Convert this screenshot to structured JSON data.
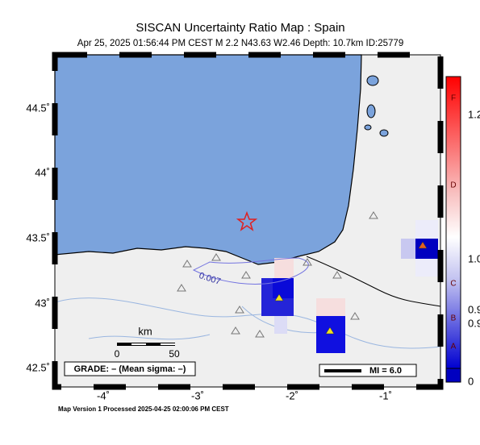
{
  "header": {
    "title": "SISCAN Uncertainty Ratio Map : Spain",
    "subtitle": "Apr 25, 2025 01:56:44 PM CEST   M 2.2   N43.63 W2.46   Depth: 10.7km   ID:25779"
  },
  "map": {
    "lat_labels": [
      "44.5˚",
      "44˚",
      "43.5˚",
      "43˚",
      "42.5˚"
    ],
    "lon_labels": [
      "-4˚",
      "-3˚",
      "-2˚",
      "-1˚"
    ],
    "contour_label": "0.007",
    "scale": {
      "unit": "km",
      "start": "0",
      "end": "50"
    },
    "grade": "GRADE: – (Mean sigma: –)",
    "mi": "MI = 6.0"
  },
  "colorbar": {
    "labels": [
      "1.2",
      "1.0",
      "0.9",
      "0.9",
      "0"
    ],
    "letters": [
      "F",
      "D",
      "C",
      "B",
      "A"
    ]
  },
  "footer": "Map Version 1 Processed 2025-04-25 02:00:06 PM CEST"
}
